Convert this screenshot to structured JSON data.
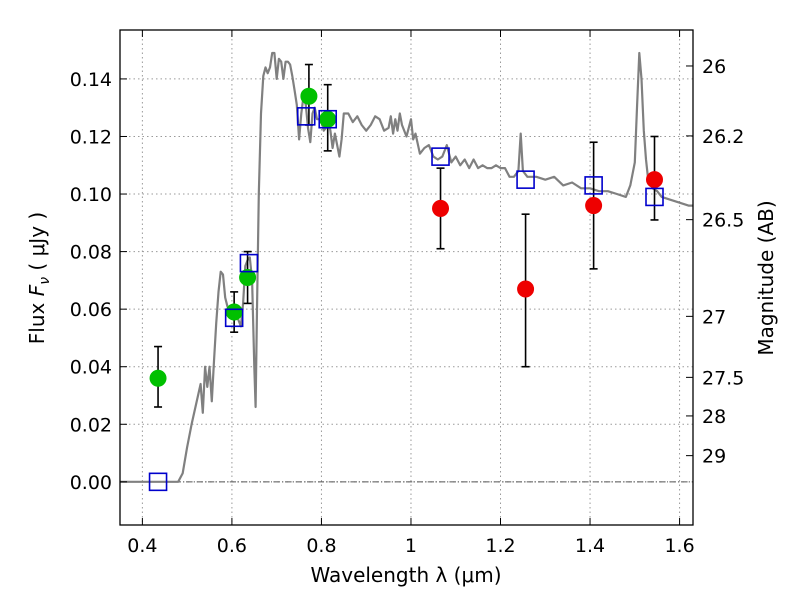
{
  "chart_data": {
    "type": "scatter",
    "xlabel": "Wavelength  λ (μm)",
    "ylabel_prefix": "Flux  ",
    "ylabel_var": "F",
    "ylabel_sub": "ν",
    "ylabel_suffix": "  ( μJy )",
    "ylabel_right": "Magnitude (AB)",
    "xlim": [
      0.35,
      1.63
    ],
    "ylim": [
      -0.015,
      0.157
    ],
    "grid": true,
    "x_ticks": [
      0.4,
      0.6,
      0.8,
      1.0,
      1.2,
      1.4,
      1.6
    ],
    "x_tick_labels": [
      "0.4",
      "0.6",
      "0.8",
      "1",
      "1.2",
      "1.4",
      "1.6"
    ],
    "y_ticks": [
      0.0,
      0.02,
      0.04,
      0.06,
      0.08,
      0.1,
      0.12,
      0.14
    ],
    "y_tick_labels": [
      "0.00",
      "0.02",
      "0.04",
      "0.06",
      "0.08",
      "0.10",
      "0.12",
      "0.14"
    ],
    "right_ticks": [
      {
        "label": "26",
        "flux": 0.1445
      },
      {
        "label": "26.2",
        "flux": 0.1202
      },
      {
        "label": "26.5",
        "flux": 0.0911
      },
      {
        "label": "27",
        "flux": 0.0575
      },
      {
        "label": "27.5",
        "flux": 0.0363
      },
      {
        "label": "28",
        "flux": 0.0229
      },
      {
        "label": "29",
        "flux": 0.0091
      }
    ],
    "colors": {
      "model": "#808080",
      "green": "#00c000",
      "red": "#ee0000",
      "square": "#0000cc",
      "zero_line": "#555555",
      "grid": "#9a9a9a"
    },
    "series": [
      {
        "type": "line",
        "points": [
          [
            0.35,
            0.0
          ],
          [
            0.48,
            0.0
          ],
          [
            0.49,
            0.003
          ],
          [
            0.5,
            0.012
          ],
          [
            0.51,
            0.02
          ],
          [
            0.52,
            0.027
          ],
          [
            0.53,
            0.034
          ],
          [
            0.535,
            0.024
          ],
          [
            0.54,
            0.04
          ],
          [
            0.545,
            0.033
          ],
          [
            0.55,
            0.04
          ],
          [
            0.555,
            0.028
          ],
          [
            0.56,
            0.042
          ],
          [
            0.565,
            0.055
          ],
          [
            0.57,
            0.066
          ],
          [
            0.575,
            0.073
          ],
          [
            0.58,
            0.072
          ],
          [
            0.585,
            0.064
          ],
          [
            0.59,
            0.061
          ],
          [
            0.6,
            0.058
          ],
          [
            0.61,
            0.058
          ],
          [
            0.62,
            0.054
          ],
          [
            0.625,
            0.062
          ],
          [
            0.63,
            0.075
          ],
          [
            0.635,
            0.077
          ],
          [
            0.64,
            0.078
          ],
          [
            0.645,
            0.07
          ],
          [
            0.65,
            0.04
          ],
          [
            0.653,
            0.026
          ],
          [
            0.656,
            0.06
          ],
          [
            0.66,
            0.1
          ],
          [
            0.665,
            0.128
          ],
          [
            0.67,
            0.141
          ],
          [
            0.675,
            0.144
          ],
          [
            0.68,
            0.142
          ],
          [
            0.685,
            0.144
          ],
          [
            0.69,
            0.149
          ],
          [
            0.695,
            0.149
          ],
          [
            0.7,
            0.14
          ],
          [
            0.705,
            0.147
          ],
          [
            0.71,
            0.146
          ],
          [
            0.715,
            0.14
          ],
          [
            0.72,
            0.146
          ],
          [
            0.725,
            0.146
          ],
          [
            0.73,
            0.145
          ],
          [
            0.735,
            0.141
          ],
          [
            0.74,
            0.136
          ],
          [
            0.745,
            0.131
          ],
          [
            0.75,
            0.119
          ],
          [
            0.755,
            0.128
          ],
          [
            0.76,
            0.134
          ],
          [
            0.765,
            0.131
          ],
          [
            0.77,
            0.123
          ],
          [
            0.775,
            0.118
          ],
          [
            0.78,
            0.128
          ],
          [
            0.785,
            0.13
          ],
          [
            0.79,
            0.126
          ],
          [
            0.8,
            0.126
          ],
          [
            0.805,
            0.122
          ],
          [
            0.81,
            0.123
          ],
          [
            0.815,
            0.126
          ],
          [
            0.82,
            0.122
          ],
          [
            0.825,
            0.116
          ],
          [
            0.83,
            0.121
          ],
          [
            0.84,
            0.113
          ],
          [
            0.845,
            0.119
          ],
          [
            0.85,
            0.128
          ],
          [
            0.86,
            0.128
          ],
          [
            0.87,
            0.125
          ],
          [
            0.88,
            0.127
          ],
          [
            0.89,
            0.124
          ],
          [
            0.9,
            0.122
          ],
          [
            0.91,
            0.124
          ],
          [
            0.92,
            0.127
          ],
          [
            0.93,
            0.126
          ],
          [
            0.94,
            0.122
          ],
          [
            0.95,
            0.123
          ],
          [
            0.955,
            0.127
          ],
          [
            0.96,
            0.121
          ],
          [
            0.965,
            0.126
          ],
          [
            0.97,
            0.122
          ],
          [
            0.975,
            0.128
          ],
          [
            0.98,
            0.124
          ],
          [
            0.99,
            0.12
          ],
          [
            1.0,
            0.126
          ],
          [
            1.005,
            0.119
          ],
          [
            1.01,
            0.121
          ],
          [
            1.02,
            0.114
          ],
          [
            1.03,
            0.116
          ],
          [
            1.04,
            0.117
          ],
          [
            1.05,
            0.113
          ],
          [
            1.06,
            0.112
          ],
          [
            1.07,
            0.113
          ],
          [
            1.08,
            0.117
          ],
          [
            1.09,
            0.111
          ],
          [
            1.1,
            0.113
          ],
          [
            1.11,
            0.11
          ],
          [
            1.12,
            0.112
          ],
          [
            1.13,
            0.109
          ],
          [
            1.14,
            0.112
          ],
          [
            1.15,
            0.109
          ],
          [
            1.16,
            0.11
          ],
          [
            1.17,
            0.109
          ],
          [
            1.18,
            0.109
          ],
          [
            1.19,
            0.11
          ],
          [
            1.2,
            0.109
          ],
          [
            1.21,
            0.109
          ],
          [
            1.22,
            0.106
          ],
          [
            1.23,
            0.106
          ],
          [
            1.24,
            0.108
          ],
          [
            1.245,
            0.121
          ],
          [
            1.25,
            0.108
          ],
          [
            1.26,
            0.106
          ],
          [
            1.27,
            0.106
          ],
          [
            1.28,
            0.106
          ],
          [
            1.3,
            0.105
          ],
          [
            1.32,
            0.106
          ],
          [
            1.34,
            0.103
          ],
          [
            1.36,
            0.104
          ],
          [
            1.38,
            0.102
          ],
          [
            1.4,
            0.102
          ],
          [
            1.42,
            0.101
          ],
          [
            1.44,
            0.101
          ],
          [
            1.46,
            0.1
          ],
          [
            1.48,
            0.099
          ],
          [
            1.49,
            0.103
          ],
          [
            1.5,
            0.111
          ],
          [
            1.505,
            0.13
          ],
          [
            1.51,
            0.149
          ],
          [
            1.515,
            0.14
          ],
          [
            1.52,
            0.122
          ],
          [
            1.525,
            0.112
          ],
          [
            1.53,
            0.105
          ],
          [
            1.54,
            0.102
          ],
          [
            1.55,
            0.101
          ],
          [
            1.56,
            0.099
          ],
          [
            1.58,
            0.098
          ],
          [
            1.6,
            0.097
          ],
          [
            1.62,
            0.096
          ],
          [
            1.63,
            0.096
          ]
        ]
      },
      {
        "type": "errorbar-points",
        "marker": "circle",
        "color": "green",
        "points": [
          {
            "x": 0.435,
            "y": 0.036,
            "ylo": 0.026,
            "yhi": 0.047
          },
          {
            "x": 0.605,
            "y": 0.059,
            "ylo": 0.052,
            "yhi": 0.066
          },
          {
            "x": 0.635,
            "y": 0.071,
            "ylo": 0.062,
            "yhi": 0.08
          },
          {
            "x": 0.772,
            "y": 0.134,
            "ylo": 0.124,
            "yhi": 0.145
          },
          {
            "x": 0.814,
            "y": 0.126,
            "ylo": 0.115,
            "yhi": 0.138
          }
        ]
      },
      {
        "type": "errorbar-points",
        "marker": "circle",
        "color": "red",
        "points": [
          {
            "x": 1.066,
            "y": 0.095,
            "ylo": 0.081,
            "yhi": 0.109
          },
          {
            "x": 1.256,
            "y": 0.067,
            "ylo": 0.04,
            "yhi": 0.093
          },
          {
            "x": 1.408,
            "y": 0.096,
            "ylo": 0.074,
            "yhi": 0.118
          },
          {
            "x": 1.544,
            "y": 0.105,
            "ylo": 0.091,
            "yhi": 0.12
          }
        ]
      },
      {
        "type": "points",
        "marker": "square-open",
        "color": "square",
        "points": [
          {
            "x": 0.435,
            "y": 0.0
          },
          {
            "x": 0.605,
            "y": 0.057
          },
          {
            "x": 0.638,
            "y": 0.076
          },
          {
            "x": 0.766,
            "y": 0.127
          },
          {
            "x": 0.814,
            "y": 0.126
          },
          {
            "x": 1.066,
            "y": 0.113
          },
          {
            "x": 1.256,
            "y": 0.105
          },
          {
            "x": 1.408,
            "y": 0.103
          },
          {
            "x": 1.544,
            "y": 0.099
          }
        ]
      }
    ]
  }
}
